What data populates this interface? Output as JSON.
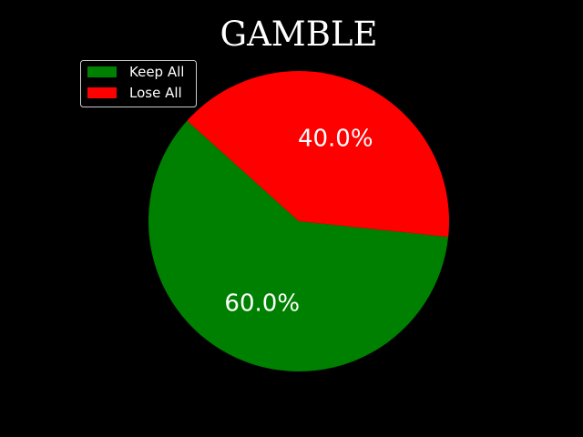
{
  "chart_data": {
    "type": "pie",
    "title": "GAMBLE",
    "slices": [
      {
        "name": "Keep All",
        "value": 60.0,
        "label": "60.0%",
        "color": "#008000"
      },
      {
        "name": "Lose All",
        "value": 40.0,
        "label": "40.0%",
        "color": "#ff0000"
      }
    ],
    "start_angle_deg": 138,
    "legend_placement": "top-left",
    "background": "#000000"
  }
}
